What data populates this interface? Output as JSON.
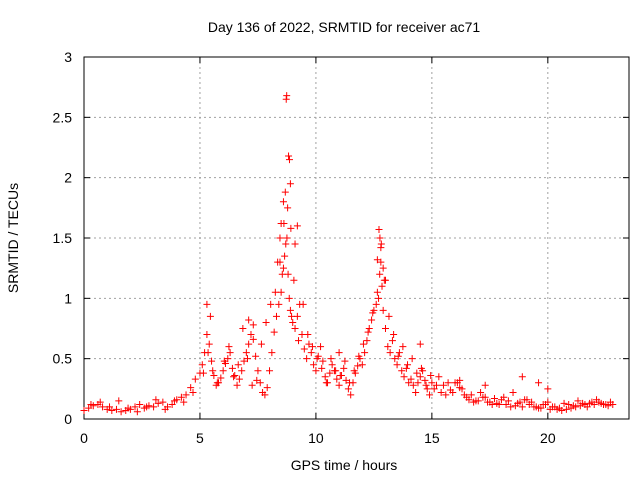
{
  "chart_data": {
    "type": "scatter",
    "title": "Day 136 of 2022, SRMTID for receiver ac71",
    "xlabel": "GPS time / hours",
    "ylabel": "SRMTID / TECUs",
    "xlim": [
      0,
      23.5
    ],
    "ylim": [
      0,
      3
    ],
    "grid": true,
    "marker": "+",
    "color": "#ff0000",
    "x_ticks": [
      0,
      5,
      10,
      15,
      20
    ],
    "x_tick_labels": [
      "0",
      "5",
      "10",
      "15",
      "20"
    ],
    "y_ticks": [
      0,
      0.5,
      1,
      1.5,
      2,
      2.5,
      3
    ],
    "y_tick_labels": [
      "0",
      "0.5",
      "1",
      "1.5",
      "2",
      "2.5",
      "3"
    ],
    "series": [
      {
        "name": "ac71",
        "x": [
          0.0,
          0.2,
          0.4,
          0.6,
          0.8,
          1.0,
          1.2,
          1.4,
          1.6,
          1.8,
          2.0,
          2.2,
          2.4,
          2.6,
          2.8,
          3.0,
          3.2,
          3.4,
          3.6,
          3.8,
          4.0,
          4.2,
          4.4,
          4.6,
          4.8,
          5.0,
          5.1,
          5.2,
          5.3,
          5.4,
          5.5,
          5.6,
          5.7,
          5.8,
          5.9,
          6.0,
          6.1,
          6.2,
          6.3,
          6.4,
          6.5,
          6.6,
          6.7,
          6.8,
          6.9,
          7.0,
          7.1,
          7.2,
          7.3,
          7.4,
          7.5,
          7.6,
          7.7,
          7.8,
          7.9,
          8.0,
          8.1,
          8.2,
          8.3,
          8.4,
          8.5,
          8.55,
          8.6,
          8.65,
          8.7,
          8.75,
          8.8,
          8.85,
          8.9,
          8.95,
          9.0,
          9.1,
          9.2,
          9.3,
          9.4,
          9.5,
          9.6,
          9.7,
          9.8,
          9.9,
          10.0,
          10.1,
          10.2,
          10.3,
          10.4,
          10.5,
          10.6,
          10.7,
          10.8,
          10.9,
          11.0,
          11.1,
          11.2,
          11.3,
          11.4,
          11.5,
          11.6,
          11.7,
          11.8,
          11.9,
          12.0,
          12.1,
          12.2,
          12.3,
          12.4,
          12.5,
          12.6,
          12.7,
          12.75,
          12.8,
          12.85,
          12.9,
          13.0,
          13.1,
          13.2,
          13.3,
          13.4,
          13.5,
          13.6,
          13.7,
          13.8,
          13.9,
          14.0,
          14.1,
          14.2,
          14.3,
          14.4,
          14.5,
          14.6,
          14.7,
          14.8,
          14.9,
          15.0,
          15.2,
          15.4,
          15.6,
          15.8,
          16.0,
          16.2,
          16.4,
          16.6,
          16.8,
          17.0,
          17.2,
          17.4,
          17.6,
          17.8,
          18.0,
          18.2,
          18.4,
          18.6,
          18.8,
          19.0,
          19.2,
          19.4,
          19.6,
          19.8,
          20.0,
          20.2,
          20.4,
          20.6,
          20.8,
          21.0,
          21.2,
          21.4,
          21.6,
          21.8,
          22.0,
          22.2,
          22.4,
          22.6,
          22.8,
          0.3,
          0.7,
          1.1,
          1.5,
          1.9,
          2.3,
          2.7,
          3.1,
          3.5,
          3.9,
          4.3,
          4.7,
          5.15,
          5.35,
          5.55,
          5.75,
          6.05,
          6.25,
          6.45,
          6.65,
          6.85,
          7.05,
          7.25,
          7.45,
          7.65,
          7.85,
          8.05,
          8.25,
          8.45,
          8.62,
          8.78,
          8.92,
          9.05,
          9.25,
          9.45,
          9.65,
          9.85,
          10.05,
          10.25,
          10.45,
          10.65,
          10.85,
          11.05,
          11.25,
          11.45,
          11.65,
          11.85,
          12.05,
          12.25,
          12.45,
          12.65,
          12.82,
          12.95,
          13.15,
          13.35,
          13.55,
          13.75,
          13.95,
          14.15,
          14.35,
          14.55,
          14.75,
          14.95,
          15.1,
          15.3,
          15.5,
          15.7,
          15.9,
          16.1,
          16.3,
          16.5,
          16.7,
          16.9,
          17.1,
          17.3,
          17.5,
          17.7,
          17.9,
          18.1,
          18.3,
          18.5,
          18.7,
          18.9,
          19.1,
          19.3,
          19.5,
          19.7,
          19.9,
          20.1,
          20.3,
          20.5,
          20.7,
          20.9,
          21.1,
          21.3,
          21.5,
          21.7,
          21.9,
          22.1,
          22.3,
          22.5,
          22.7,
          8.72,
          8.74,
          8.82,
          8.86,
          8.9,
          8.68,
          8.6,
          8.5,
          8.45,
          9.2,
          9.1,
          8.35,
          12.72,
          12.76,
          12.8,
          12.9,
          12.65,
          13.0,
          5.3,
          5.45,
          7.1,
          7.3,
          11.0,
          14.5,
          16.2,
          17.3,
          18.9,
          19.6,
          20.0
        ],
        "y": [
          0.07,
          0.09,
          0.11,
          0.12,
          0.1,
          0.08,
          0.07,
          0.08,
          0.06,
          0.07,
          0.08,
          0.1,
          0.12,
          0.09,
          0.11,
          0.1,
          0.13,
          0.14,
          0.1,
          0.12,
          0.16,
          0.18,
          0.2,
          0.26,
          0.33,
          0.38,
          0.45,
          0.55,
          0.7,
          0.62,
          0.48,
          0.36,
          0.28,
          0.3,
          0.34,
          0.4,
          0.46,
          0.5,
          0.55,
          0.42,
          0.36,
          0.28,
          0.33,
          0.4,
          0.48,
          0.55,
          0.62,
          0.7,
          0.66,
          0.52,
          0.4,
          0.3,
          0.22,
          0.2,
          0.26,
          0.4,
          0.55,
          0.72,
          0.85,
          0.95,
          1.05,
          1.2,
          1.25,
          1.35,
          1.45,
          1.5,
          1.2,
          1.0,
          0.9,
          0.85,
          0.8,
          0.75,
          0.85,
          0.95,
          0.7,
          0.58,
          0.5,
          0.62,
          0.55,
          0.45,
          0.4,
          0.52,
          0.6,
          0.48,
          0.35,
          0.3,
          0.38,
          0.45,
          0.4,
          0.33,
          0.28,
          0.36,
          0.42,
          0.32,
          0.25,
          0.2,
          0.3,
          0.38,
          0.44,
          0.5,
          0.45,
          0.55,
          0.65,
          0.75,
          0.82,
          0.9,
          0.95,
          1.0,
          1.2,
          1.3,
          1.1,
          0.9,
          0.75,
          0.6,
          0.55,
          0.65,
          0.5,
          0.45,
          0.55,
          0.4,
          0.35,
          0.42,
          0.3,
          0.33,
          0.28,
          0.22,
          0.3,
          0.35,
          0.4,
          0.32,
          0.25,
          0.2,
          0.3,
          0.28,
          0.22,
          0.2,
          0.24,
          0.3,
          0.26,
          0.2,
          0.16,
          0.14,
          0.15,
          0.18,
          0.14,
          0.12,
          0.13,
          0.16,
          0.12,
          0.1,
          0.11,
          0.14,
          0.16,
          0.12,
          0.1,
          0.09,
          0.12,
          0.14,
          0.1,
          0.08,
          0.07,
          0.08,
          0.09,
          0.1,
          0.11,
          0.12,
          0.13,
          0.12,
          0.14,
          0.12,
          0.11,
          0.12,
          0.12,
          0.14,
          0.1,
          0.15,
          0.09,
          0.06,
          0.1,
          0.16,
          0.08,
          0.15,
          0.14,
          0.22,
          0.38,
          0.55,
          0.4,
          0.3,
          0.48,
          0.6,
          0.35,
          0.45,
          0.75,
          0.5,
          0.28,
          0.32,
          0.62,
          0.8,
          0.95,
          1.05,
          1.3,
          1.62,
          1.75,
          1.58,
          1.15,
          0.65,
          0.95,
          0.7,
          0.6,
          0.5,
          0.42,
          0.3,
          0.5,
          0.4,
          0.36,
          0.48,
          0.3,
          0.4,
          0.52,
          0.62,
          0.72,
          0.88,
          1.05,
          1.45,
          1.15,
          0.85,
          0.7,
          0.52,
          0.6,
          0.45,
          0.5,
          0.38,
          0.42,
          0.28,
          0.36,
          0.25,
          0.35,
          0.28,
          0.3,
          0.22,
          0.3,
          0.25,
          0.18,
          0.2,
          0.15,
          0.22,
          0.18,
          0.14,
          0.17,
          0.12,
          0.18,
          0.15,
          0.22,
          0.13,
          0.1,
          0.16,
          0.14,
          0.1,
          0.09,
          0.12,
          0.08,
          0.1,
          0.09,
          0.13,
          0.12,
          0.11,
          0.15,
          0.13,
          0.1,
          0.14,
          0.16,
          0.13,
          0.12,
          0.14,
          2.65,
          2.68,
          2.18,
          2.15,
          1.95,
          1.88,
          1.8,
          1.62,
          1.5,
          1.6,
          1.45,
          1.3,
          1.57,
          1.5,
          1.42,
          1.25,
          1.32,
          1.15,
          0.95,
          0.85,
          0.82,
          0.78,
          0.55,
          0.62,
          0.32,
          0.28,
          0.35,
          0.3,
          0.25
        ]
      }
    ]
  }
}
